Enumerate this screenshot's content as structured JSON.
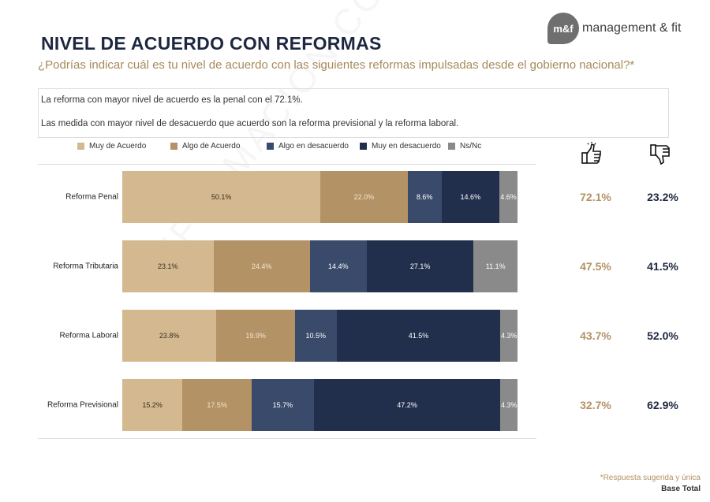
{
  "header": {
    "title": "NIVEL DE ACUERDO CON REFORMAS",
    "subtitle": "¿Podrías indicar cuál es tu nivel de acuerdo con las siguientes reformas impulsadas desde el gobierno nacional?*",
    "logo_mark": "m&f",
    "logo_text": "management & fit"
  },
  "insights": [
    "La reforma con mayor nivel de acuerdo es la penal con el 72.1%.",
    "Las medida con mayor nivel de desacuerdo que acuerdo son la reforma previsional y la reforma laboral."
  ],
  "watermark": "INFORMACIÓN CONFIDENCIAL",
  "icons": {
    "agree": "thumbs-up-icon",
    "disagree": "thumbs-down-icon"
  },
  "footer": {
    "note": "*Respuesta sugerida y única",
    "base": "Base Total"
  },
  "chart_data": {
    "type": "bar",
    "orientation": "horizontal",
    "stacked": true,
    "legend_position": "top",
    "grid": false,
    "categories": [
      "Reforma Penal",
      "Reforma Tributaria",
      "Reforma Laboral",
      "Reforma Previsional"
    ],
    "series": [
      {
        "name": "Muy de Acuerdo",
        "color": "#d4b990",
        "label_color": "#3a2e1c",
        "values": [
          50.1,
          23.1,
          23.8,
          15.2
        ]
      },
      {
        "name": "Algo de Acuerdo",
        "color": "#b39266",
        "label_color": "#f3e6cf",
        "values": [
          22.0,
          24.4,
          19.9,
          17.5
        ]
      },
      {
        "name": "Algo en desacuerdo",
        "color": "#3a4a6a",
        "label_color": "#ffffff",
        "values": [
          8.6,
          14.4,
          10.5,
          15.7
        ]
      },
      {
        "name": "Muy en desacuerdo",
        "color": "#222f4c",
        "label_color": "#ffffff",
        "values": [
          14.6,
          27.1,
          41.5,
          47.2
        ]
      },
      {
        "name": "Ns/Nc",
        "color": "#8a8a8a",
        "label_color": "#ffffff",
        "values": [
          4.6,
          11.1,
          4.3,
          4.3
        ]
      }
    ],
    "totals_agree": [
      "72.1%",
      "47.5%",
      "43.7%",
      "32.7%"
    ],
    "totals_disagree": [
      "23.2%",
      "41.5%",
      "52.0%",
      "62.9%"
    ],
    "value_suffix": "%"
  }
}
